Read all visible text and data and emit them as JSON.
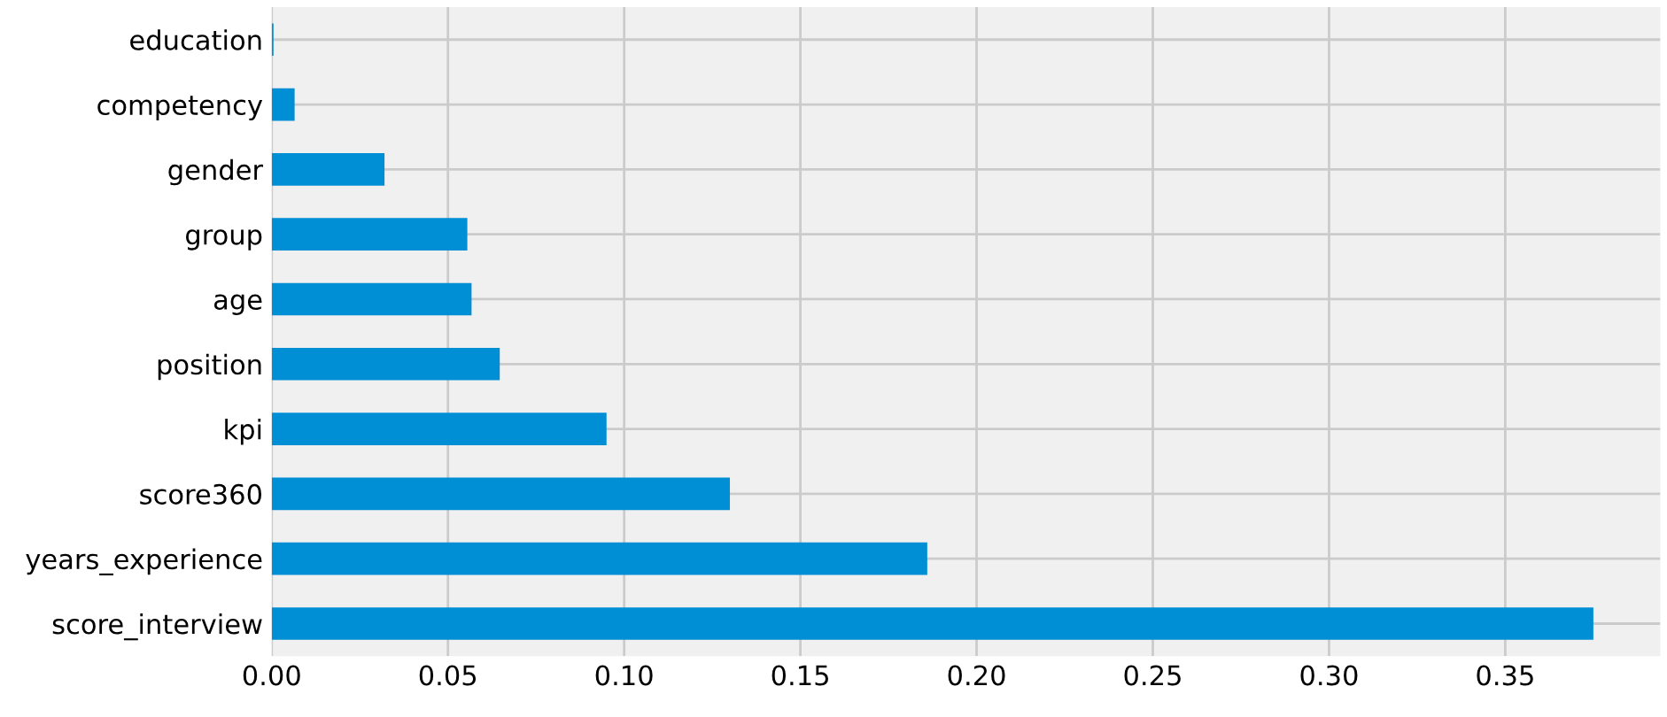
{
  "chart_data": {
    "type": "bar",
    "orientation": "horizontal",
    "categories": [
      "education",
      "competency",
      "gender",
      "group",
      "age",
      "position",
      "kpi",
      "score360",
      "years_experience",
      "score_interview"
    ],
    "values": [
      0.0005,
      0.0065,
      0.032,
      0.0555,
      0.0567,
      0.0647,
      0.095,
      0.13,
      0.186,
      0.375
    ],
    "color": "#008fd5",
    "xlim": [
      0,
      0.394
    ],
    "xticks": [
      {
        "value": 0,
        "label": "0.00"
      },
      {
        "value": 0.05,
        "label": "0.05"
      },
      {
        "value": 0.1,
        "label": "0.10"
      },
      {
        "value": 0.15,
        "label": "0.15"
      },
      {
        "value": 0.2,
        "label": "0.20"
      },
      {
        "value": 0.25,
        "label": "0.25"
      },
      {
        "value": 0.3,
        "label": "0.30"
      },
      {
        "value": 0.35,
        "label": "0.35"
      }
    ],
    "grid": true
  }
}
